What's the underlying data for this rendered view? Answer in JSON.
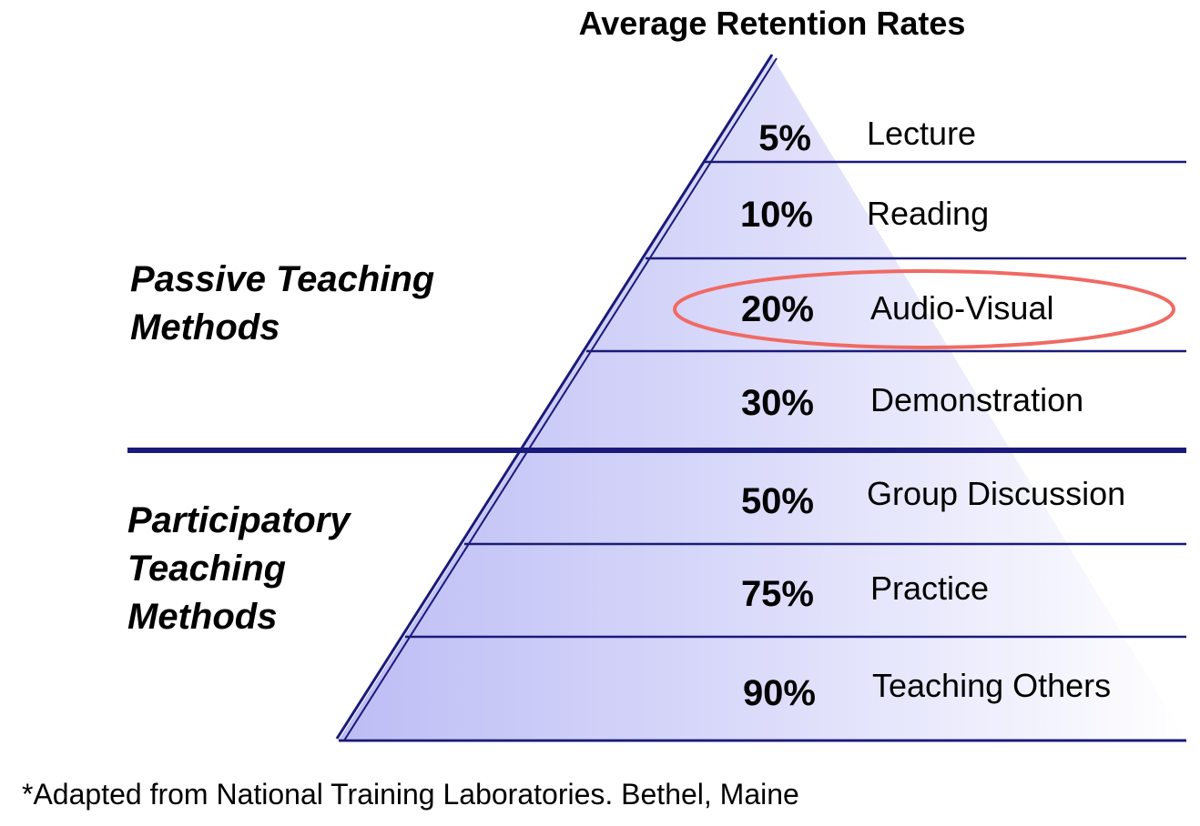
{
  "title": "Average Retention Rates",
  "accent_color": "#1a1a7a",
  "highlight_color": "#f06a63",
  "levels": [
    {
      "percent": "5%",
      "method": "Lecture"
    },
    {
      "percent": "10%",
      "method": "Reading"
    },
    {
      "percent": "20%",
      "method": "Audio-Visual",
      "highlighted": true
    },
    {
      "percent": "30%",
      "method": "Demonstration"
    },
    {
      "percent": "50%",
      "method": "Group Discussion"
    },
    {
      "percent": "75%",
      "method": "Practice"
    },
    {
      "percent": "90%",
      "method": "Teaching Others"
    }
  ],
  "groups": {
    "passive": {
      "line1": "Passive Teaching",
      "line2": "Methods"
    },
    "participatory": {
      "line1": "Participatory",
      "line2": "Teaching",
      "line3": "Methods"
    }
  },
  "footnote": "*Adapted from National Training Laboratories. Bethel, Maine"
}
